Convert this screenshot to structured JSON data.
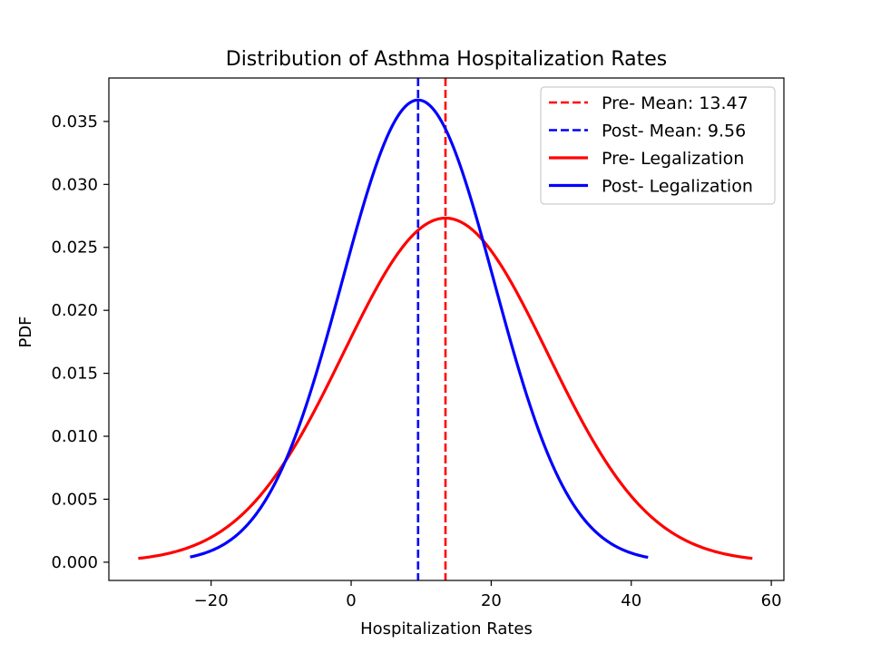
{
  "chart_data": {
    "type": "line",
    "title": "Distribution of Asthma Hospitalization Rates",
    "xlabel": "Hospitalization Rates",
    "ylabel": "PDF",
    "xlim": [
      -34.6,
      61.8
    ],
    "ylim": [
      -0.00145,
      0.03845
    ],
    "x_ticks": [
      -20,
      0,
      20,
      40,
      60
    ],
    "x_tick_labels": [
      "−20",
      "0",
      "20",
      "40",
      "60"
    ],
    "y_ticks": [
      0.0,
      0.005,
      0.01,
      0.015,
      0.02,
      0.025,
      0.03,
      0.035
    ],
    "y_tick_labels": [
      "0.000",
      "0.005",
      "0.010",
      "0.015",
      "0.020",
      "0.025",
      "0.030",
      "0.035"
    ],
    "grid": false,
    "legend_position": "top-right",
    "series": [
      {
        "name": "Pre- Legalization",
        "style": "solid",
        "color": "#ff0000",
        "distribution": "normal",
        "mean": 13.47,
        "std": 14.6,
        "x_range": [
          -30.4,
          57.3
        ]
      },
      {
        "name": "Post- Legalization",
        "style": "solid",
        "color": "#0000ff",
        "distribution": "normal",
        "mean": 9.56,
        "std": 10.87,
        "x_range": [
          -23.0,
          42.4
        ]
      }
    ],
    "reference_lines": [
      {
        "name": "Pre- Mean: 13.47",
        "x": 13.47,
        "style": "dashed",
        "color": "#ff0000"
      },
      {
        "name": "Post- Mean: 9.56",
        "x": 9.56,
        "style": "dashed",
        "color": "#0000ff"
      }
    ],
    "legend": [
      {
        "label": "Pre- Mean: 13.47",
        "color": "#ff0000",
        "style": "dashed"
      },
      {
        "label": "Post- Mean: 9.56",
        "color": "#0000ff",
        "style": "dashed"
      },
      {
        "label": "Pre- Legalization",
        "color": "#ff0000",
        "style": "solid"
      },
      {
        "label": "Post- Legalization",
        "color": "#0000ff",
        "style": "solid"
      }
    ]
  }
}
